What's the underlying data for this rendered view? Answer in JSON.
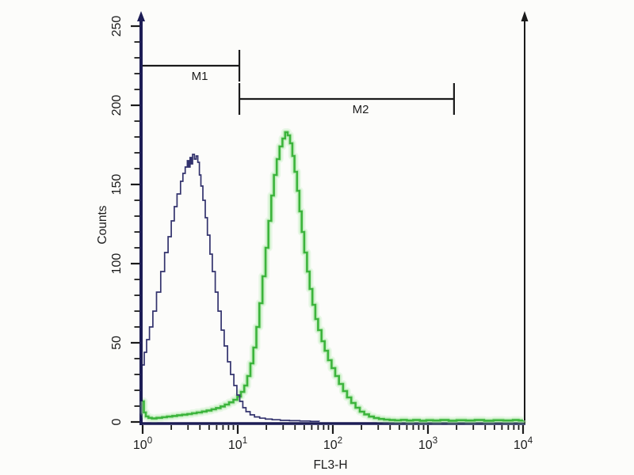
{
  "figure": {
    "background": "#fcfcfa",
    "axis_color": "#1d1d55",
    "tick_color": "#1b1b1b",
    "text_color": "#1c1c1c"
  },
  "chart_data": {
    "type": "line",
    "subtype": "flow-cytometry-histogram-overlay",
    "title": "",
    "xlabel": "FL3-H",
    "ylabel": "Counts",
    "x_scale": "log10",
    "x_range": [
      1,
      10000
    ],
    "x_ticks": [
      {
        "base": "10",
        "exp": "0",
        "value": 1
      },
      {
        "base": "10",
        "exp": "1",
        "value": 10
      },
      {
        "base": "10",
        "exp": "2",
        "value": 100
      },
      {
        "base": "10",
        "exp": "3",
        "value": 1000
      },
      {
        "base": "10",
        "exp": "4",
        "value": 10000
      }
    ],
    "y_range": [
      0,
      250
    ],
    "y_tick_values": [
      0,
      50,
      100,
      150,
      200,
      250
    ],
    "y_tick_labels": [
      "0",
      "50",
      "100",
      "150",
      "200",
      "250"
    ],
    "y_minor_step": 10,
    "grid": false,
    "legend": null,
    "markers": [
      {
        "label": "M1",
        "from": 1,
        "to": 10.4,
        "counts": 225,
        "caps": [
          "right"
        ]
      },
      {
        "label": "M2",
        "from": 10.4,
        "to": 1880,
        "counts": 204,
        "caps": [
          "left",
          "right"
        ]
      }
    ],
    "series": [
      {
        "name": "green-sample-histogram",
        "color": "#3cb43c",
        "glow": "#a5e8a0",
        "width": 2.6,
        "points": [
          [
            1,
            13
          ],
          [
            1.03,
            6
          ],
          [
            1.08,
            3.5
          ],
          [
            1.15,
            2.6
          ],
          [
            1.25,
            2.2
          ],
          [
            1.4,
            2.6
          ],
          [
            1.6,
            3
          ],
          [
            1.8,
            3.4
          ],
          [
            2.05,
            3.8
          ],
          [
            2.3,
            4.2
          ],
          [
            2.6,
            4.6
          ],
          [
            2.95,
            5
          ],
          [
            3.3,
            5.5
          ],
          [
            3.7,
            6
          ],
          [
            4.2,
            6.6
          ],
          [
            4.7,
            7.2
          ],
          [
            5.3,
            8
          ],
          [
            5.9,
            8.8
          ],
          [
            6.6,
            9.8
          ],
          [
            7.3,
            11
          ],
          [
            8.1,
            12.4
          ],
          [
            9,
            14
          ],
          [
            9.9,
            16
          ],
          [
            10.8,
            19
          ],
          [
            11.7,
            23
          ],
          [
            12.6,
            29
          ],
          [
            13.6,
            37
          ],
          [
            14.6,
            47
          ],
          [
            15.7,
            60
          ],
          [
            16.9,
            75
          ],
          [
            18.2,
            92
          ],
          [
            19.6,
            110
          ],
          [
            21,
            127
          ],
          [
            22.5,
            143
          ],
          [
            24,
            156
          ],
          [
            25.7,
            166
          ],
          [
            27.5,
            174
          ],
          [
            29.5,
            179
          ],
          [
            31.5,
            183
          ],
          [
            33.5,
            181
          ],
          [
            35.5,
            176
          ],
          [
            37.5,
            168
          ],
          [
            39.5,
            158
          ],
          [
            42,
            146
          ],
          [
            44.5,
            133
          ],
          [
            47,
            120
          ],
          [
            50,
            107
          ],
          [
            53.5,
            95
          ],
          [
            57,
            84
          ],
          [
            61,
            74
          ],
          [
            65.5,
            65
          ],
          [
            70,
            58
          ],
          [
            76,
            51
          ],
          [
            82,
            45
          ],
          [
            89,
            39
          ],
          [
            97,
            34
          ],
          [
            106,
            29
          ],
          [
            116,
            24
          ],
          [
            128,
            19.5
          ],
          [
            141,
            15.5
          ],
          [
            156,
            12
          ],
          [
            173,
            9
          ],
          [
            192,
            6.5
          ],
          [
            214,
            4.8
          ],
          [
            240,
            3.4
          ],
          [
            270,
            2.5
          ],
          [
            305,
            1.9
          ],
          [
            345,
            1.5
          ],
          [
            395,
            1.2
          ],
          [
            450,
            1
          ],
          [
            520,
            1.3
          ],
          [
            600,
            0.9
          ],
          [
            700,
            1.2
          ],
          [
            820,
            0.8
          ],
          [
            960,
            1.1
          ],
          [
            1130,
            0.9
          ],
          [
            1350,
            1.2
          ],
          [
            1650,
            0.8
          ],
          [
            2000,
            1.1
          ],
          [
            2500,
            0.9
          ],
          [
            3100,
            1.2
          ],
          [
            3900,
            0.8
          ],
          [
            4900,
            1.1
          ],
          [
            6200,
            0.9
          ],
          [
            7800,
            1.2
          ],
          [
            9000,
            0.9
          ],
          [
            10000,
            1
          ]
        ]
      },
      {
        "name": "navy-control-histogram",
        "color": "#32326d",
        "glow": null,
        "width": 1.7,
        "points": [
          [
            1,
            36
          ],
          [
            1.04,
            44
          ],
          [
            1.1,
            52
          ],
          [
            1.18,
            60
          ],
          [
            1.28,
            70
          ],
          [
            1.4,
            82
          ],
          [
            1.55,
            95
          ],
          [
            1.7,
            107
          ],
          [
            1.85,
            117
          ],
          [
            2,
            127
          ],
          [
            2.15,
            136
          ],
          [
            2.3,
            144
          ],
          [
            2.5,
            152
          ],
          [
            2.65,
            157
          ],
          [
            2.8,
            161
          ],
          [
            2.95,
            165
          ],
          [
            3.05,
            161
          ],
          [
            3.15,
            167
          ],
          [
            3.25,
            163
          ],
          [
            3.35,
            169
          ],
          [
            3.5,
            166
          ],
          [
            3.65,
            168
          ],
          [
            3.8,
            164
          ],
          [
            3.95,
            156
          ],
          [
            4.1,
            149
          ],
          [
            4.3,
            140
          ],
          [
            4.55,
            129
          ],
          [
            4.8,
            118
          ],
          [
            5.1,
            106
          ],
          [
            5.4,
            95
          ],
          [
            5.8,
            82
          ],
          [
            6.2,
            70
          ],
          [
            6.7,
            58
          ],
          [
            7.2,
            48
          ],
          [
            7.8,
            38
          ],
          [
            8.4,
            30
          ],
          [
            9.1,
            23
          ],
          [
            9.8,
            17
          ],
          [
            10.5,
            13
          ],
          [
            11.3,
            9
          ],
          [
            12.2,
            6.5
          ],
          [
            13.5,
            4.5
          ],
          [
            15,
            3.2
          ],
          [
            17,
            2.4
          ],
          [
            19.5,
            1.8
          ],
          [
            23,
            1.4
          ],
          [
            28,
            1
          ],
          [
            35,
            0.8
          ],
          [
            45,
            0.6
          ],
          [
            58,
            0.4
          ],
          [
            72,
            0.3
          ]
        ]
      }
    ]
  }
}
